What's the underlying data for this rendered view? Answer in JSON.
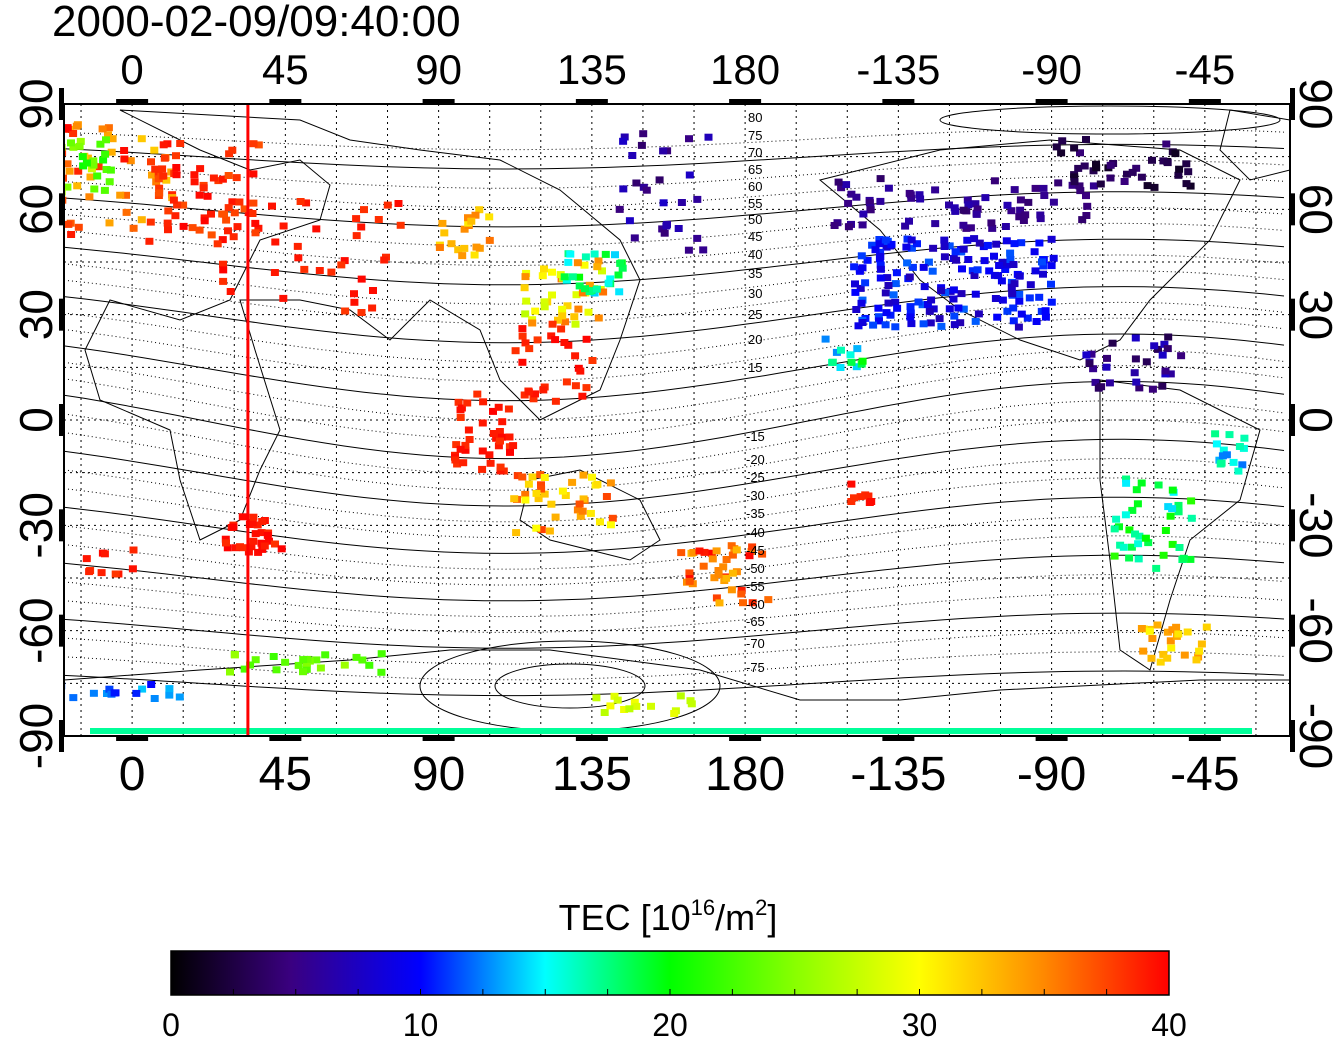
{
  "timestamp": "2000-02-09/09:40:00",
  "top_lon_ticks": [
    "0",
    "45",
    "90",
    "135",
    "180",
    "-135",
    "-90",
    "-45"
  ],
  "bottom_lon_ticks": [
    "0",
    "45",
    "90",
    "135",
    "180",
    "-135",
    "-90",
    "-45"
  ],
  "left_lat_ticks": [
    "90",
    "60",
    "30",
    "0",
    "-30",
    "-60",
    "-90"
  ],
  "right_lat_ticks": [
    "90",
    "60",
    "30",
    "0",
    "-30",
    "-60",
    "-90"
  ],
  "magnetic_lat_labels_north": [
    "80",
    "75",
    "70",
    "65",
    "60",
    "55",
    "50",
    "45",
    "40",
    "35",
    "30",
    "25",
    "20",
    "15"
  ],
  "magnetic_lat_labels_south": [
    "-15",
    "-20",
    "-25",
    "-30",
    "-35",
    "-40",
    "-45",
    "-50",
    "-55",
    "-60",
    "-65",
    "-70",
    "-75"
  ],
  "colorbar": {
    "title_prefix": "TEC  [10",
    "title_exp1": "16",
    "title_mid": "/m",
    "title_exp2": "2",
    "title_suffix": "]",
    "min": 0,
    "max": 40,
    "tick_labels": [
      "0",
      "10",
      "20",
      "30",
      "40"
    ]
  },
  "meridian_marker_lon": 34,
  "meridian_color": "#ff0000"
}
